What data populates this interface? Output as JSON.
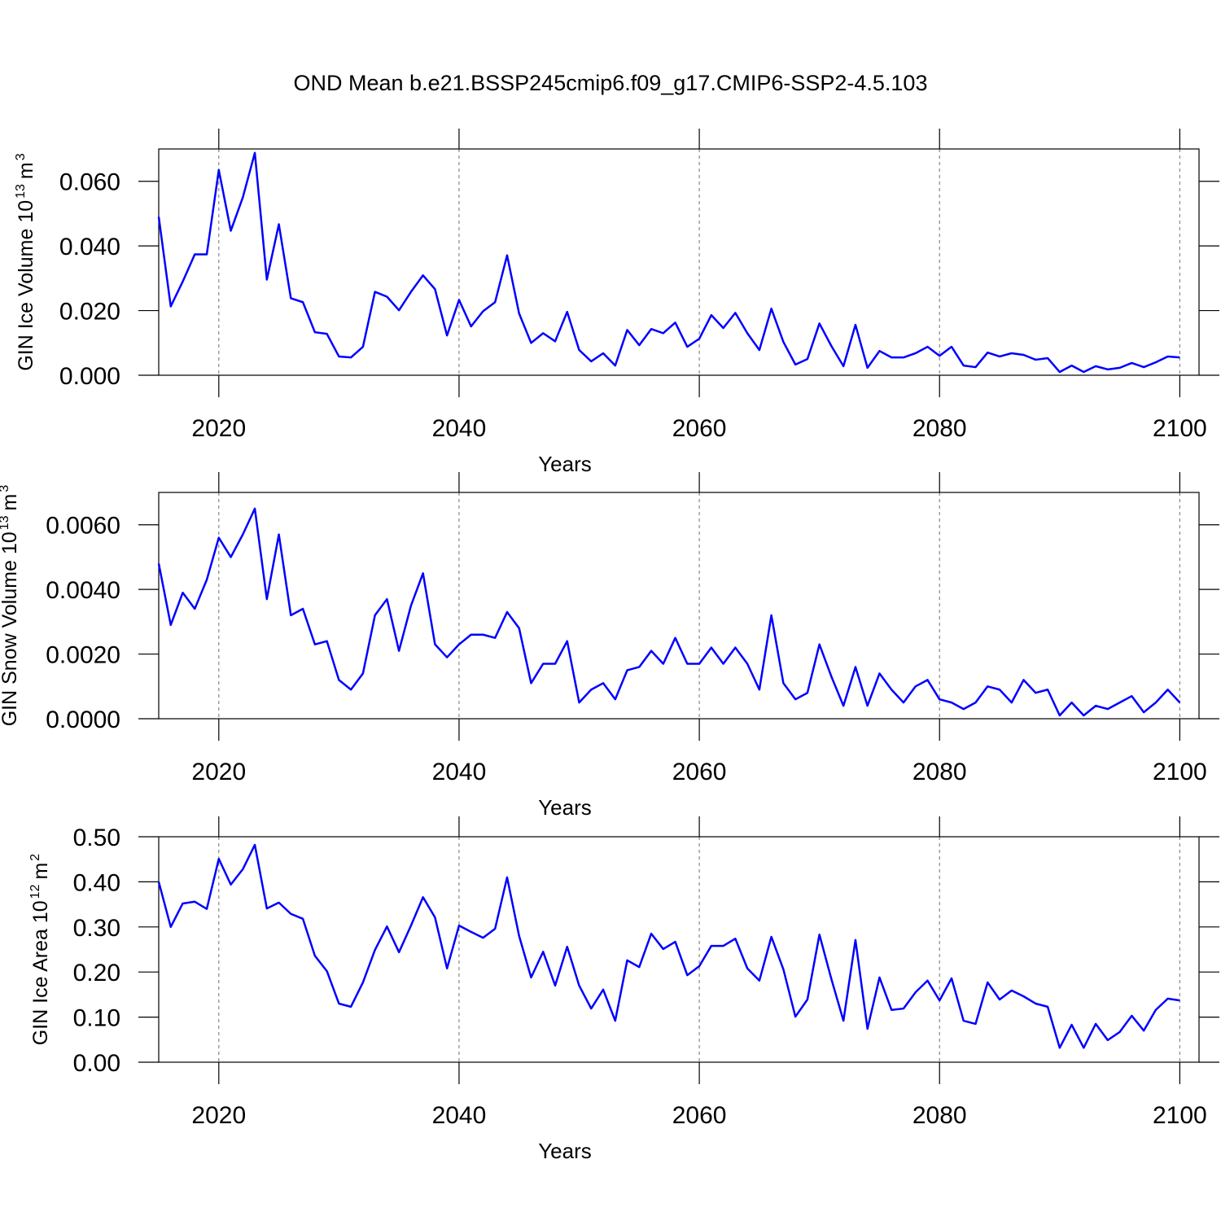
{
  "title": "OND Mean b.e21.BSSP245cmip6.f09_g17.CMIP6-SSP2-4.5.103",
  "chart_data": [
    {
      "type": "line",
      "color": "#0000ff",
      "grid": true,
      "xlabel": "Years",
      "ylabel": [
        "GIN Ice Volume 10",
        "13",
        "m",
        "3"
      ],
      "xlim": [
        2015,
        2101.6
      ],
      "ylim": [
        0,
        0.07
      ],
      "xticks": [
        2020,
        2040,
        2060,
        2080,
        2100
      ],
      "yticks": [
        {
          "value": 0,
          "label": "0.000"
        },
        {
          "value": 0.02,
          "label": "0.020"
        },
        {
          "value": 0.04,
          "label": "0.040"
        },
        {
          "value": 0.06,
          "label": "0.060"
        }
      ],
      "x": [
        2015,
        2016,
        2017,
        2018,
        2019,
        2020,
        2021,
        2022,
        2023,
        2024,
        2025,
        2026,
        2027,
        2028,
        2029,
        2030,
        2031,
        2032,
        2033,
        2034,
        2035,
        2036,
        2037,
        2038,
        2039,
        2040,
        2041,
        2042,
        2043,
        2044,
        2045,
        2046,
        2047,
        2048,
        2049,
        2050,
        2051,
        2052,
        2053,
        2054,
        2055,
        2056,
        2057,
        2058,
        2059,
        2060,
        2061,
        2062,
        2063,
        2064,
        2065,
        2066,
        2067,
        2068,
        2069,
        2070,
        2071,
        2072,
        2073,
        2074,
        2075,
        2076,
        2077,
        2078,
        2079,
        2080,
        2081,
        2082,
        2083,
        2084,
        2085,
        2086,
        2087,
        2088,
        2089,
        2090,
        2091,
        2092,
        2093,
        2094,
        2095,
        2096,
        2097,
        2098,
        2099,
        2100
      ],
      "values": [
        0.049,
        0.0213,
        0.029,
        0.0374,
        0.0374,
        0.0635,
        0.0447,
        0.055,
        0.0688,
        0.0296,
        0.0467,
        0.0238,
        0.0226,
        0.0133,
        0.0128,
        0.0058,
        0.0055,
        0.0088,
        0.0258,
        0.0243,
        0.0201,
        0.0258,
        0.0309,
        0.0266,
        0.0123,
        0.0233,
        0.0151,
        0.0198,
        0.0226,
        0.0371,
        0.0191,
        0.01,
        0.013,
        0.0105,
        0.0196,
        0.0078,
        0.0043,
        0.0068,
        0.003,
        0.014,
        0.0093,
        0.0143,
        0.013,
        0.0163,
        0.0088,
        0.0113,
        0.0186,
        0.0146,
        0.0193,
        0.013,
        0.0078,
        0.0206,
        0.0103,
        0.0033,
        0.005,
        0.016,
        0.009,
        0.0028,
        0.0156,
        0.0023,
        0.0075,
        0.0055,
        0.0055,
        0.0068,
        0.0088,
        0.006,
        0.0088,
        0.003,
        0.0025,
        0.007,
        0.0058,
        0.0068,
        0.0063,
        0.0048,
        0.0053,
        0.001,
        0.003,
        0.001,
        0.0028,
        0.0018,
        0.0023,
        0.0038,
        0.0025,
        0.004,
        0.0058,
        0.0055
      ]
    },
    {
      "type": "line",
      "color": "#0000ff",
      "grid": true,
      "xlabel": "Years",
      "ylabel": [
        "GIN Snow Volume 10",
        "13",
        "m",
        "3"
      ],
      "xlim": [
        2015,
        2101.6
      ],
      "ylim": [
        0,
        0.007
      ],
      "xticks": [
        2020,
        2040,
        2060,
        2080,
        2100
      ],
      "yticks": [
        {
          "value": 0,
          "label": "0.0000"
        },
        {
          "value": 0.002,
          "label": "0.0020"
        },
        {
          "value": 0.004,
          "label": "0.0040"
        },
        {
          "value": 0.006,
          "label": "0.0060"
        }
      ],
      "x": [
        2015,
        2016,
        2017,
        2018,
        2019,
        2020,
        2021,
        2022,
        2023,
        2024,
        2025,
        2026,
        2027,
        2028,
        2029,
        2030,
        2031,
        2032,
        2033,
        2034,
        2035,
        2036,
        2037,
        2038,
        2039,
        2040,
        2041,
        2042,
        2043,
        2044,
        2045,
        2046,
        2047,
        2048,
        2049,
        2050,
        2051,
        2052,
        2053,
        2054,
        2055,
        2056,
        2057,
        2058,
        2059,
        2060,
        2061,
        2062,
        2063,
        2064,
        2065,
        2066,
        2067,
        2068,
        2069,
        2070,
        2071,
        2072,
        2073,
        2074,
        2075,
        2076,
        2077,
        2078,
        2079,
        2080,
        2081,
        2082,
        2083,
        2084,
        2085,
        2086,
        2087,
        2088,
        2089,
        2090,
        2091,
        2092,
        2093,
        2094,
        2095,
        2096,
        2097,
        2098,
        2099,
        2100
      ],
      "values": [
        0.0048,
        0.0029,
        0.0039,
        0.0034,
        0.0043,
        0.0056,
        0.005,
        0.0057,
        0.0065,
        0.0037,
        0.0057,
        0.0032,
        0.0034,
        0.0023,
        0.0024,
        0.0012,
        0.0009,
        0.0014,
        0.0032,
        0.0037,
        0.0021,
        0.0035,
        0.0045,
        0.0023,
        0.0019,
        0.0023,
        0.0026,
        0.0026,
        0.0025,
        0.0033,
        0.0028,
        0.0011,
        0.0017,
        0.0017,
        0.0024,
        0.0005,
        0.0009,
        0.0011,
        0.0006,
        0.0015,
        0.0016,
        0.0021,
        0.0017,
        0.0025,
        0.0017,
        0.0017,
        0.0022,
        0.0017,
        0.0022,
        0.0017,
        0.0009,
        0.0032,
        0.0011,
        0.0006,
        0.0008,
        0.0023,
        0.0013,
        0.0004,
        0.0016,
        0.0004,
        0.0014,
        0.0009,
        0.0005,
        0.001,
        0.0012,
        0.0006,
        0.0005,
        0.0003,
        0.0005,
        0.001,
        0.0009,
        0.0005,
        0.0012,
        0.0008,
        0.0009,
        0.0001,
        0.0005,
        0.0001,
        0.0004,
        0.0003,
        0.0005,
        0.0007,
        0.0002,
        0.0005,
        0.0009,
        0.0005
      ]
    },
    {
      "type": "line",
      "color": "#0000ff",
      "grid": true,
      "xlabel": "Years",
      "ylabel": [
        "GIN Ice Area 10",
        "12",
        "m",
        "2"
      ],
      "xlim": [
        2015,
        2101.6
      ],
      "ylim": [
        0,
        0.5
      ],
      "xticks": [
        2020,
        2040,
        2060,
        2080,
        2100
      ],
      "yticks": [
        {
          "value": 0,
          "label": "0.00"
        },
        {
          "value": 0.1,
          "label": "0.10"
        },
        {
          "value": 0.2,
          "label": "0.20"
        },
        {
          "value": 0.3,
          "label": "0.30"
        },
        {
          "value": 0.4,
          "label": "0.40"
        },
        {
          "value": 0.5,
          "label": "0.50"
        }
      ],
      "x": [
        2015,
        2016,
        2017,
        2018,
        2019,
        2020,
        2021,
        2022,
        2023,
        2024,
        2025,
        2026,
        2027,
        2028,
        2029,
        2030,
        2031,
        2032,
        2033,
        2034,
        2035,
        2036,
        2037,
        2038,
        2039,
        2040,
        2041,
        2042,
        2043,
        2044,
        2045,
        2046,
        2047,
        2048,
        2049,
        2050,
        2051,
        2052,
        2053,
        2054,
        2055,
        2056,
        2057,
        2058,
        2059,
        2060,
        2061,
        2062,
        2063,
        2064,
        2065,
        2066,
        2067,
        2068,
        2069,
        2070,
        2071,
        2072,
        2073,
        2074,
        2075,
        2076,
        2077,
        2078,
        2079,
        2080,
        2081,
        2082,
        2083,
        2084,
        2085,
        2086,
        2087,
        2088,
        2089,
        2090,
        2091,
        2092,
        2093,
        2094,
        2095,
        2096,
        2097,
        2098,
        2099,
        2100
      ],
      "values": [
        0.4,
        0.3,
        0.352,
        0.356,
        0.34,
        0.451,
        0.394,
        0.428,
        0.482,
        0.341,
        0.354,
        0.329,
        0.318,
        0.236,
        0.202,
        0.13,
        0.123,
        0.177,
        0.249,
        0.301,
        0.244,
        0.303,
        0.366,
        0.321,
        0.208,
        0.303,
        0.289,
        0.276,
        0.296,
        0.41,
        0.28,
        0.188,
        0.245,
        0.17,
        0.256,
        0.17,
        0.119,
        0.161,
        0.092,
        0.226,
        0.211,
        0.285,
        0.251,
        0.267,
        0.193,
        0.213,
        0.258,
        0.258,
        0.274,
        0.208,
        0.181,
        0.278,
        0.206,
        0.101,
        0.139,
        0.283,
        0.184,
        0.092,
        0.271,
        0.074,
        0.188,
        0.116,
        0.119,
        0.155,
        0.181,
        0.137,
        0.186,
        0.092,
        0.085,
        0.177,
        0.139,
        0.159,
        0.146,
        0.13,
        0.123,
        0.032,
        0.083,
        0.032,
        0.085,
        0.049,
        0.067,
        0.103,
        0.07,
        0.116,
        0.141,
        0.137
      ]
    }
  ]
}
